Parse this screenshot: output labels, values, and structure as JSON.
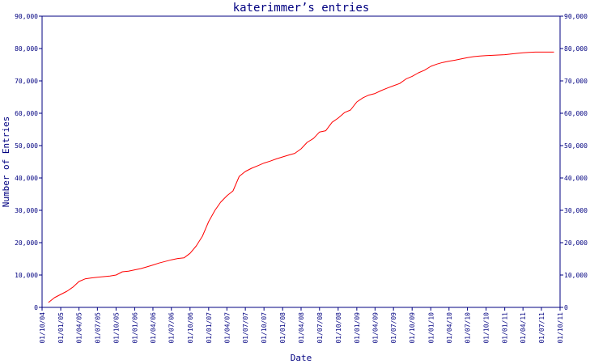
{
  "chart_data": {
    "type": "line",
    "title": "katerimmer’s entries",
    "xlabel": "Date",
    "ylabel": "Number of Entries",
    "ylim": [
      0,
      90000
    ],
    "y_ticks": [
      0,
      10000,
      20000,
      30000,
      40000,
      50000,
      60000,
      70000,
      80000,
      90000
    ],
    "y_tick_labels": [
      "0",
      "10,000",
      "20,000",
      "30,000",
      "40,000",
      "50,000",
      "60,000",
      "70,000",
      "80,000",
      "90,000"
    ],
    "x_tick_labels": [
      "01/10/04",
      "01/01/05",
      "01/04/05",
      "01/07/05",
      "01/10/05",
      "01/01/06",
      "01/04/06",
      "01/07/06",
      "01/10/06",
      "01/01/07",
      "01/04/07",
      "01/07/07",
      "01/10/07",
      "01/01/08",
      "01/04/08",
      "01/07/08",
      "01/10/08",
      "01/01/09",
      "01/04/09",
      "01/07/09",
      "01/10/09",
      "01/01/10",
      "01/04/10",
      "01/07/10",
      "01/10/10",
      "01/01/11",
      "01/04/11",
      "01/07/11",
      "01/10/11"
    ],
    "grid": false,
    "series_color": "#ff0000",
    "axis_color": "#000080",
    "series": [
      {
        "x": [
          "2004-11-01",
          "2004-12-01",
          "2005-01-01",
          "2005-02-01",
          "2005-03-01",
          "2005-04-01",
          "2005-05-01",
          "2005-06-01",
          "2005-07-01",
          "2005-08-01",
          "2005-09-01",
          "2005-10-01",
          "2005-11-01",
          "2005-12-01",
          "2006-01-01",
          "2006-02-01",
          "2006-03-01",
          "2006-04-01",
          "2006-05-01",
          "2006-06-01",
          "2006-07-01",
          "2006-08-01",
          "2006-09-01",
          "2006-10-01",
          "2006-11-01",
          "2006-12-01",
          "2007-01-01",
          "2007-02-01",
          "2007-03-01",
          "2007-04-01",
          "2007-05-01",
          "2007-06-01",
          "2007-07-01",
          "2007-08-01",
          "2007-09-01",
          "2007-10-01",
          "2007-11-01",
          "2007-12-01",
          "2008-01-01",
          "2008-02-01",
          "2008-03-01",
          "2008-04-01",
          "2008-05-01",
          "2008-06-01",
          "2008-07-01",
          "2008-08-01",
          "2008-09-01",
          "2008-10-01",
          "2008-11-01",
          "2008-12-01",
          "2009-01-01",
          "2009-02-01",
          "2009-03-01",
          "2009-04-01",
          "2009-05-01",
          "2009-06-01",
          "2009-07-01",
          "2009-08-01",
          "2009-09-01",
          "2009-10-01",
          "2009-11-01",
          "2009-12-01",
          "2010-01-01",
          "2010-02-01",
          "2010-03-01",
          "2010-04-01",
          "2010-05-01",
          "2010-06-01",
          "2010-07-01",
          "2010-08-01",
          "2010-09-01",
          "2010-10-01",
          "2010-11-01",
          "2010-12-01",
          "2011-01-01",
          "2011-02-01",
          "2011-03-01",
          "2011-04-01",
          "2011-05-01",
          "2011-06-01",
          "2011-07-01",
          "2011-08-01",
          "2011-09-01"
        ],
        "values": [
          1500,
          3000,
          4000,
          5000,
          6200,
          8000,
          8800,
          9100,
          9300,
          9500,
          9700,
          10000,
          11000,
          11200,
          11600,
          12000,
          12500,
          13100,
          13700,
          14200,
          14700,
          15100,
          15300,
          16700,
          19000,
          22000,
          26500,
          30000,
          32500,
          34500,
          36000,
          40500,
          42000,
          43000,
          43800,
          44600,
          45200,
          45900,
          46500,
          47100,
          47600,
          49000,
          51000,
          52200,
          54200,
          54600,
          57200,
          58500,
          60200,
          61000,
          63500,
          64800,
          65600,
          66100,
          67000,
          67800,
          68500,
          69200,
          70600,
          71400,
          72500,
          73300,
          74500,
          75200,
          75700,
          76100,
          76400,
          76800,
          77200,
          77500,
          77700,
          77800,
          77900,
          78000,
          78100,
          78300,
          78500,
          78700,
          78800,
          78900,
          78900,
          78900,
          78900
        ]
      }
    ]
  }
}
